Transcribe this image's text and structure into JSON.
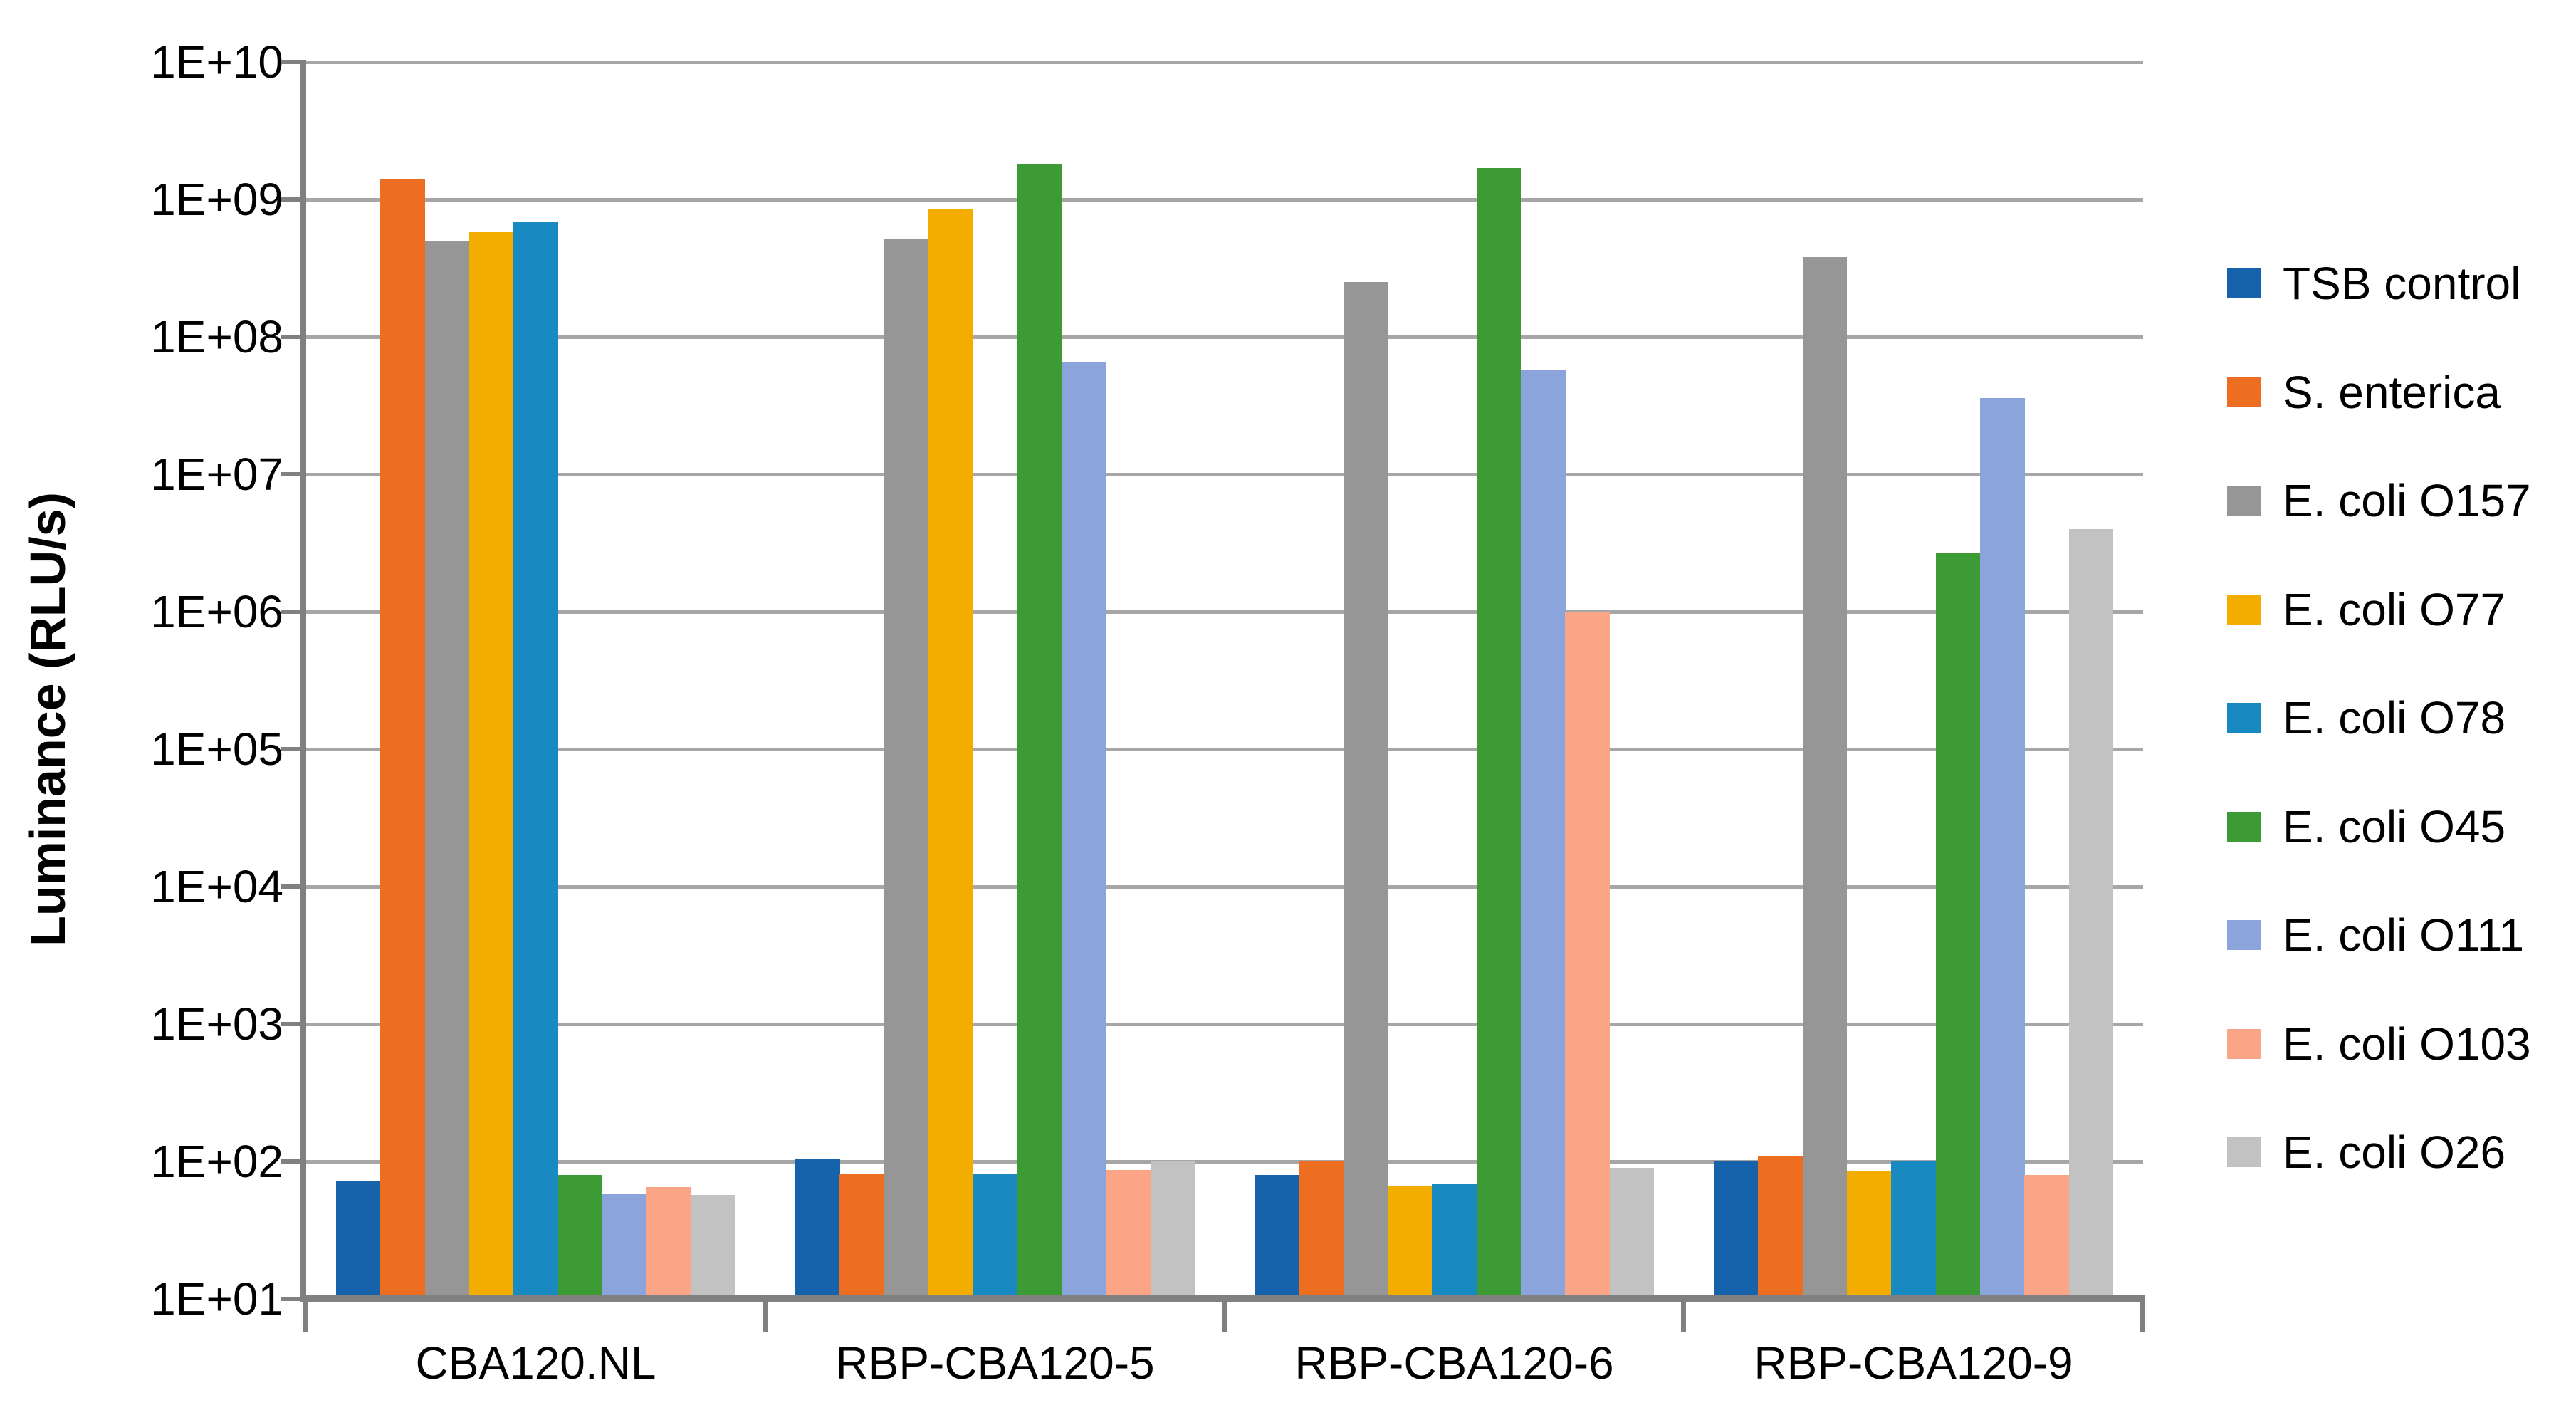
{
  "chart_data": {
    "type": "bar",
    "title": "",
    "xlabel": "",
    "ylabel": "Luminance (RLU/s)",
    "y_scale": "log10",
    "ylim": [
      10,
      10000000000
    ],
    "y_ticks": [
      "1E+10",
      "1E+09",
      "1E+08",
      "1E+07",
      "1E+06",
      "1E+05",
      "1E+04",
      "1E+03",
      "1E+02",
      "1E+01"
    ],
    "grid": "horizontal",
    "legend_position": "right",
    "categories": [
      "CBA120.NL",
      "RBP-CBA120-5",
      "RBP-CBA120-6",
      "RBP-CBA120-9"
    ],
    "series": [
      {
        "name": "TSB control",
        "color": "#1663AC",
        "values": [
          72,
          105,
          80,
          100
        ]
      },
      {
        "name": "S. enterica",
        "color": "#ED6E21",
        "values": [
          1400000000.0,
          82,
          100,
          110
        ]
      },
      {
        "name": "E. coli O157",
        "color": "#969696",
        "values": [
          500000000.0,
          510000000.0,
          250000000.0,
          380000000.0
        ]
      },
      {
        "name": "E. coli O77",
        "color": "#F3AC00",
        "values": [
          580000000.0,
          860000000.0,
          66,
          85
        ]
      },
      {
        "name": "E. coli O78",
        "color": "#1889C1",
        "values": [
          680000000.0,
          82,
          68,
          100
        ]
      },
      {
        "name": "E. coli O45",
        "color": "#3C9B35",
        "values": [
          80,
          1800000000.0,
          1700000000.0,
          2700000.0
        ]
      },
      {
        "name": "E. coli O111",
        "color": "#8CA4DC",
        "values": [
          58,
          66000000.0,
          58000000.0,
          36000000.0
        ]
      },
      {
        "name": "E. coli O103",
        "color": "#FCA586",
        "values": [
          65,
          87,
          1000000.0,
          80
        ]
      },
      {
        "name": "E. coli O26",
        "color": "#C2C2C2",
        "values": [
          57,
          100,
          90,
          4000000.0
        ]
      }
    ]
  },
  "colors": {
    "gridline": "#A6A6A6",
    "axis": "#808080",
    "text": "#000000",
    "background": "#FFFFFF"
  }
}
